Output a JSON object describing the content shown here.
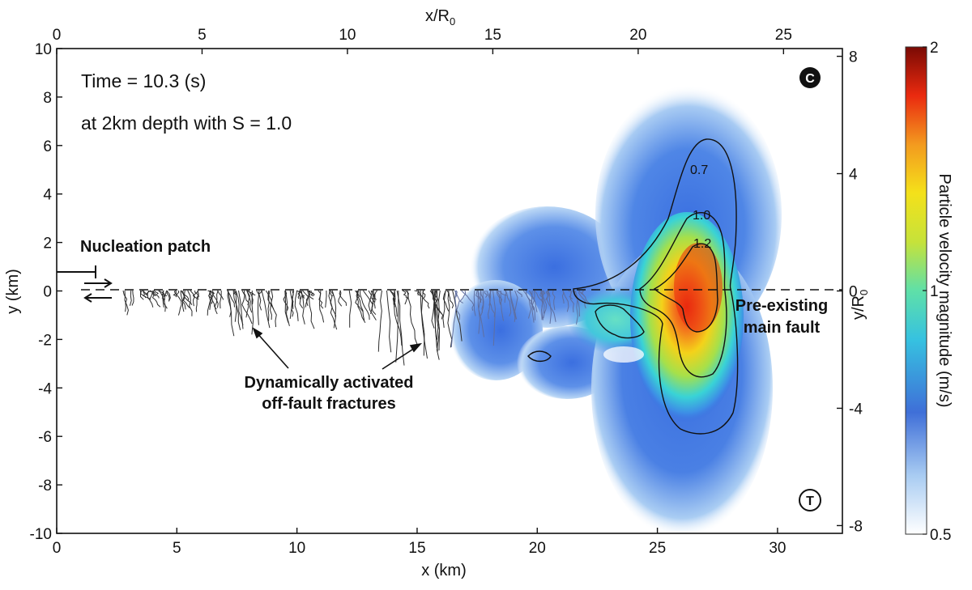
{
  "chart_data": {
    "type": "heatmap",
    "title": "Time = 10.3 (s)",
    "subtitle": "at 2km depth with S = 1.0",
    "xlabel": "x (km)",
    "ylabel": "y (km)",
    "x2label_main": "x/R",
    "x2label_sub": "0",
    "y2label_main": "y/R",
    "y2label_sub": "0",
    "xlim": [
      0,
      32.7
    ],
    "ylim": [
      -10,
      10
    ],
    "x_ticks": [
      0,
      5,
      10,
      15,
      20,
      25,
      30
    ],
    "y_ticks": [
      -10,
      -8,
      -6,
      -4,
      -2,
      0,
      2,
      4,
      6,
      8,
      10
    ],
    "x2_ticks": [
      0,
      5,
      10,
      15,
      20,
      25
    ],
    "x2_scale_km_per_unit": 1.21,
    "y2_ticks": [
      -8,
      -4,
      0,
      4,
      8
    ],
    "y2_scale_km_per_unit": 1.21,
    "colorbar": {
      "label": "Particle velocity magnitude (m/s)",
      "min": 0.5,
      "max": 2,
      "ticks": [
        "0.5",
        "1",
        "2"
      ],
      "scale": "log",
      "colormap": [
        "#ffffff",
        "#a9ccf2",
        "#3f6fd8",
        "#36d9d9",
        "#9be04a",
        "#f4e11a",
        "#f39a1f",
        "#ea2a0f",
        "#7a0a04"
      ]
    },
    "contours": [
      {
        "level": "0.7"
      },
      {
        "level": "1.0"
      },
      {
        "level": "1.2"
      }
    ],
    "labels": {
      "panel_c": "C",
      "panel_t": "T",
      "nucleation": "Nucleation patch",
      "fractures_line1": "Dynamically activated",
      "fractures_line2": "off-fault fractures",
      "fault_line1": "Pre-existing",
      "fault_line2": "main fault"
    }
  }
}
